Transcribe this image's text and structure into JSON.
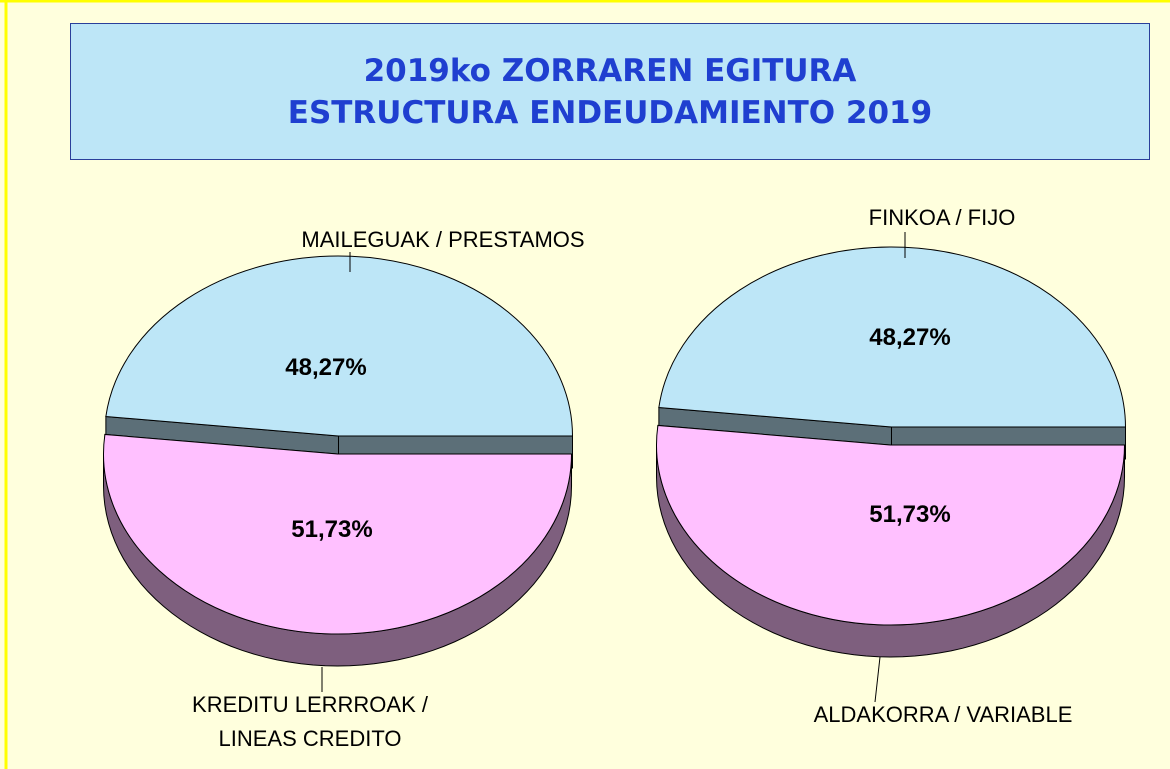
{
  "header": {
    "title": [
      "2019ko ZORRAREN EGITURA",
      "ESTRUCTURA ENDEUDAMIENTO 2019"
    ]
  },
  "chart_data": [
    {
      "type": "pie",
      "categories": [
        "MAILEGUAK / PRESTAMOS",
        "KREDITU LERRROAK / LINEAS CREDITO"
      ],
      "values": [
        48.27,
        51.73
      ],
      "value_labels": [
        "48,27%",
        "51,73%"
      ],
      "colors": [
        "#bde6f7",
        "#ffc0ff"
      ],
      "side_colors": [
        "#5c6f78",
        "#7e5f7e"
      ]
    },
    {
      "type": "pie",
      "categories": [
        "FINKOA / FIJO",
        "ALDAKORRA / VARIABLE"
      ],
      "values": [
        48.27,
        51.73
      ],
      "value_labels": [
        "48,27%",
        "51,73%"
      ],
      "colors": [
        "#bde6f7",
        "#ffc0ff"
      ],
      "side_colors": [
        "#5c6f78",
        "#7e5f7e"
      ]
    }
  ]
}
